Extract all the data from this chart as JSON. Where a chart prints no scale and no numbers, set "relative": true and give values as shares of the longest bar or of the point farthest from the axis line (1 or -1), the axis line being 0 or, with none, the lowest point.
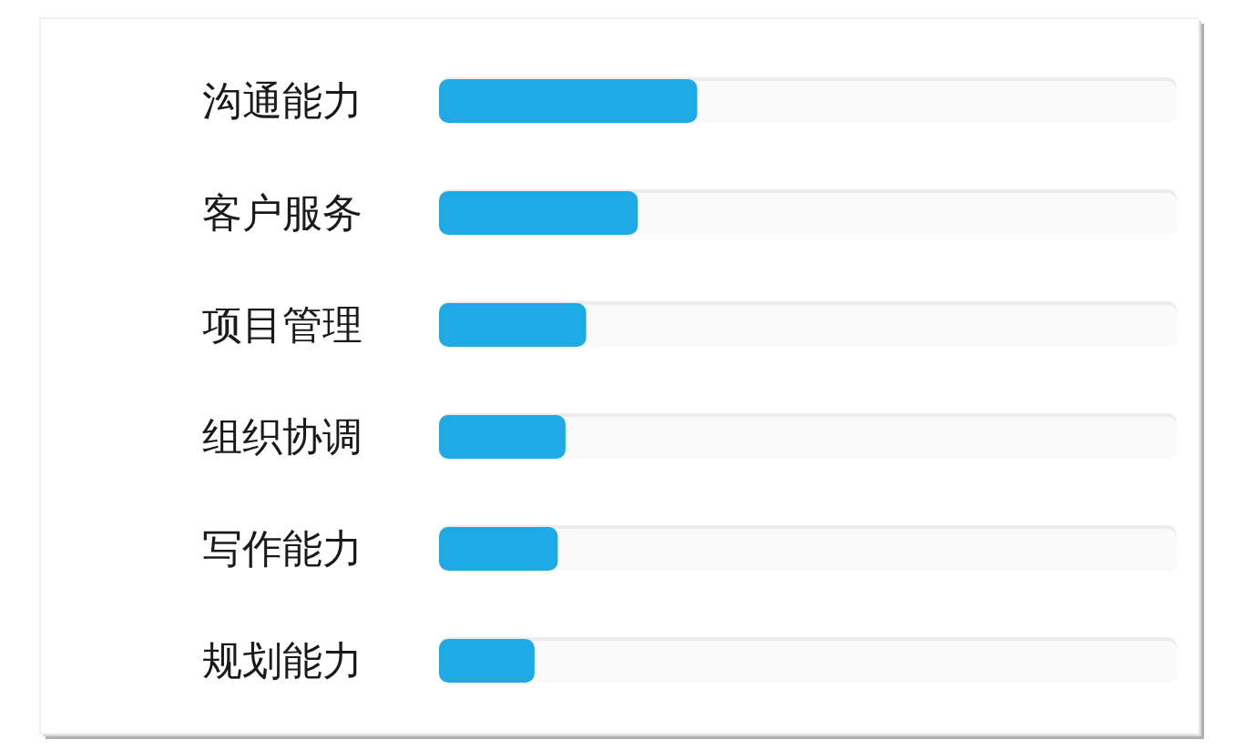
{
  "chart_data": {
    "type": "bar",
    "orientation": "horizontal",
    "relative": true,
    "categories": [
      "沟通能力",
      "客户服务",
      "项目管理",
      "组织协调",
      "写作能力",
      "规划能力"
    ],
    "values": [
      1,
      0.77,
      0.57,
      0.49,
      0.46,
      0.37
    ],
    "color": "#1fa9e5"
  }
}
